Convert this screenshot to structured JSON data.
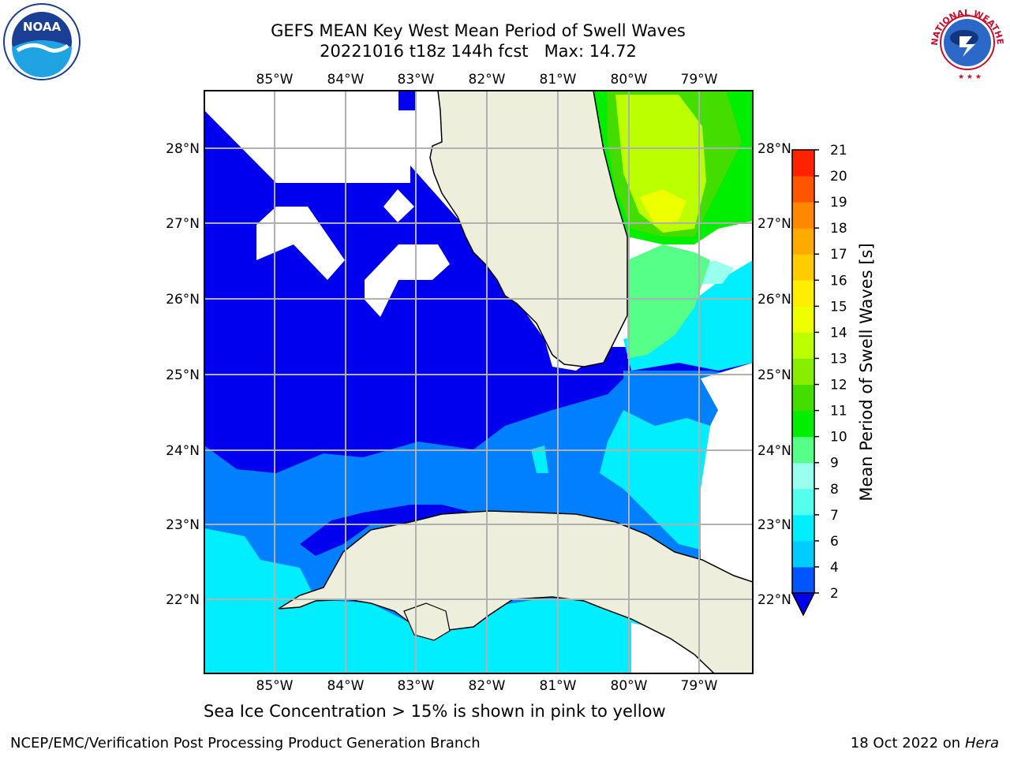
{
  "title": {
    "line1": "GEFS MEAN Key West Mean Period of Swell Waves",
    "line2": "20221016 t18z 144h fcst   Max: 14.72"
  },
  "map": {
    "lon_labels": [
      "85°W",
      "84°W",
      "83°W",
      "82°W",
      "81°W",
      "80°W",
      "79°W"
    ],
    "lat_labels": [
      "28°N",
      "27°N",
      "26°N",
      "25°N",
      "24°N",
      "23°N",
      "22°N"
    ]
  },
  "colorbar": {
    "label": "Mean Period of Swell Waves [s]",
    "ticks": [
      "2",
      "4",
      "6",
      "7",
      "8",
      "9",
      "10",
      "11",
      "12",
      "13",
      "14",
      "15",
      "16",
      "17",
      "18",
      "19",
      "20",
      "21"
    ],
    "colors": [
      "#0055ff",
      "#00ccff",
      "#00eeff",
      "#55ffee",
      "#99ffee",
      "#55ff88",
      "#00ee00",
      "#44dd00",
      "#88ee00",
      "#bbff00",
      "#eeff00",
      "#ffee00",
      "#ffcc00",
      "#ffaa00",
      "#ff8800",
      "#ff5500",
      "#ff2200"
    ],
    "under_color": "#0000ee"
  },
  "note": "Sea Ice Concentration > 15% is shown in pink to yellow",
  "footer": {
    "left": "NCEP/EMC/Verification Post Processing Product Generation Branch",
    "date": "18 Oct 2022 on ",
    "host": "Hera"
  },
  "logos": {
    "noaa_text": "NOAA",
    "nws_ring": "NATIONAL WEATHER SERVICE"
  }
}
